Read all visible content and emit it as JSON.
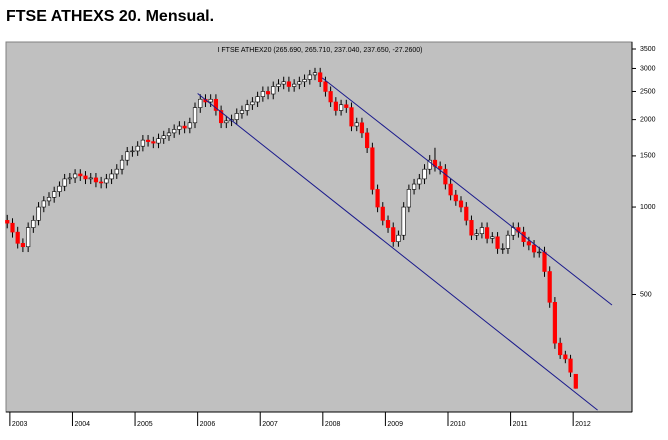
{
  "chart_data": {
    "type": "candlestick",
    "title": "FTSE ATHEXS 20. Mensual.",
    "subtitle": "I FTSE ATHEX20 (265.690, 265.710, 237.040, 237.650, -27.2600)",
    "x": [
      2002.958,
      2003.042,
      2003.125,
      2003.208,
      2003.292,
      2003.375,
      2003.458,
      2003.542,
      2003.625,
      2003.708,
      2003.792,
      2003.875,
      2003.958,
      2004.042,
      2004.125,
      2004.208,
      2004.292,
      2004.375,
      2004.458,
      2004.542,
      2004.625,
      2004.708,
      2004.792,
      2004.875,
      2004.958,
      2005.042,
      2005.125,
      2005.208,
      2005.292,
      2005.375,
      2005.458,
      2005.542,
      2005.625,
      2005.708,
      2005.792,
      2005.875,
      2005.958,
      2006.042,
      2006.125,
      2006.208,
      2006.292,
      2006.375,
      2006.458,
      2006.542,
      2006.625,
      2006.708,
      2006.792,
      2006.875,
      2006.958,
      2007.042,
      2007.125,
      2007.208,
      2007.292,
      2007.375,
      2007.458,
      2007.542,
      2007.625,
      2007.708,
      2007.792,
      2007.875,
      2007.958,
      2008.042,
      2008.125,
      2008.208,
      2008.292,
      2008.375,
      2008.458,
      2008.542,
      2008.625,
      2008.708,
      2008.792,
      2008.875,
      2008.958,
      2009.042,
      2009.125,
      2009.208,
      2009.292,
      2009.375,
      2009.458,
      2009.542,
      2009.625,
      2009.708,
      2009.792,
      2009.875,
      2009.958,
      2010.042,
      2010.125,
      2010.208,
      2010.292,
      2010.375,
      2010.458,
      2010.542,
      2010.625,
      2010.708,
      2010.792,
      2010.875,
      2010.958,
      2011.042,
      2011.125,
      2011.208,
      2011.292,
      2011.375,
      2011.458,
      2011.542,
      2011.625,
      2011.708,
      2011.792,
      2011.875,
      2011.958,
      2012.042
    ],
    "open": [
      900,
      880,
      820,
      750,
      730,
      850,
      900,
      1000,
      1050,
      1080,
      1130,
      1180,
      1250,
      1260,
      1300,
      1280,
      1250,
      1260,
      1220,
      1210,
      1250,
      1300,
      1350,
      1450,
      1550,
      1560,
      1620,
      1700,
      1680,
      1660,
      1720,
      1760,
      1800,
      1850,
      1900,
      1870,
      1950,
      2200,
      2350,
      2300,
      2350,
      2150,
      1950,
      1980,
      2000,
      2100,
      2150,
      2250,
      2300,
      2400,
      2500,
      2450,
      2600,
      2650,
      2700,
      2600,
      2650,
      2700,
      2750,
      2850,
      2900,
      2700,
      2500,
      2300,
      2150,
      2250,
      2200,
      1900,
      1950,
      1800,
      1600,
      1150,
      1000,
      900,
      850,
      760,
      800,
      1000,
      1150,
      1200,
      1250,
      1350,
      1450,
      1380,
      1350,
      1200,
      1100,
      1050,
      1000,
      900,
      800,
      810,
      850,
      780,
      790,
      720,
      720,
      800,
      850,
      820,
      760,
      740,
      700,
      700,
      600,
      470,
      340,
      310,
      300,
      265.69
    ],
    "high": [
      940,
      915,
      855,
      780,
      885,
      935,
      1040,
      1090,
      1125,
      1175,
      1225,
      1300,
      1310,
      1350,
      1350,
      1330,
      1310,
      1310,
      1270,
      1300,
      1350,
      1405,
      1510,
      1610,
      1620,
      1685,
      1770,
      1770,
      1745,
      1790,
      1830,
      1870,
      1925,
      1975,
      1975,
      2030,
      2290,
      2445,
      2445,
      2445,
      2445,
      2235,
      2060,
      2080,
      2185,
      2235,
      2340,
      2390,
      2495,
      2600,
      2600,
      2705,
      2755,
      2810,
      2810,
      2755,
      2810,
      2860,
      2965,
      3015,
      3015,
      2810,
      2600,
      2390,
      2340,
      2340,
      2290,
      2030,
      2030,
      1870,
      1665,
      1195,
      1040,
      935,
      885,
      830,
      1040,
      1195,
      1250,
      1300,
      1405,
      1510,
      1600,
      1435,
      1405,
      1250,
      1145,
      1090,
      1040,
      935,
      840,
      885,
      885,
      820,
      820,
      750,
      830,
      885,
      885,
      855,
      790,
      770,
      730,
      730,
      625,
      490,
      355,
      320,
      310,
      265.71
    ],
    "low": [
      845,
      785,
      720,
      700,
      700,
      815,
      865,
      960,
      1010,
      1035,
      1085,
      1135,
      1200,
      1210,
      1230,
      1200,
      1200,
      1170,
      1160,
      1160,
      1200,
      1250,
      1295,
      1390,
      1490,
      1500,
      1555,
      1615,
      1595,
      1595,
      1650,
      1690,
      1730,
      1775,
      1795,
      1795,
      1870,
      2110,
      2210,
      2210,
      2065,
      1870,
      1870,
      1900,
      1920,
      2015,
      2065,
      2160,
      2210,
      2305,
      2350,
      2350,
      2495,
      2545,
      2495,
      2495,
      2545,
      2590,
      2640,
      2735,
      2590,
      2400,
      2210,
      2065,
      2065,
      2110,
      1825,
      1825,
      1730,
      1535,
      1105,
      960,
      865,
      815,
      730,
      730,
      770,
      960,
      1105,
      1150,
      1200,
      1295,
      1325,
      1295,
      1150,
      1055,
      1010,
      960,
      865,
      770,
      770,
      780,
      750,
      750,
      690,
      690,
      690,
      770,
      785,
      730,
      710,
      670,
      670,
      575,
      450,
      325,
      300,
      290,
      260,
      237.04
    ],
    "close": [
      880,
      820,
      750,
      730,
      850,
      900,
      1000,
      1050,
      1080,
      1130,
      1180,
      1250,
      1260,
      1300,
      1280,
      1250,
      1260,
      1220,
      1210,
      1250,
      1300,
      1350,
      1450,
      1550,
      1560,
      1620,
      1700,
      1680,
      1660,
      1720,
      1760,
      1800,
      1850,
      1900,
      1870,
      1950,
      2200,
      2350,
      2300,
      2350,
      2150,
      1950,
      1980,
      2000,
      2100,
      2150,
      2250,
      2300,
      2400,
      2500,
      2450,
      2600,
      2650,
      2700,
      2600,
      2650,
      2700,
      2750,
      2850,
      2900,
      2700,
      2500,
      2300,
      2150,
      2250,
      2200,
      1900,
      1950,
      1800,
      1600,
      1150,
      1000,
      900,
      850,
      760,
      800,
      1000,
      1150,
      1200,
      1250,
      1350,
      1450,
      1380,
      1350,
      1200,
      1100,
      1050,
      1000,
      900,
      800,
      810,
      850,
      780,
      790,
      720,
      720,
      800,
      850,
      820,
      760,
      740,
      700,
      700,
      600,
      470,
      340,
      310,
      300,
      270,
      237.65
    ],
    "up_color": "#ffffff",
    "down_color": "#ff0000",
    "background": "#c0c0c0",
    "xlim": [
      2002.97,
      2012.94
    ],
    "xticks": [
      2003,
      2004,
      2005,
      2006,
      2007,
      2008,
      2009,
      2010,
      2011,
      2012
    ],
    "ylim": [
      197,
      3700
    ],
    "yticks": [
      500,
      1000,
      1500,
      2000,
      2500,
      3000,
      3500
    ],
    "log_scale": true,
    "y_axis_side": "right",
    "trendlines": [
      {
        "x": [
          2007.99,
          2012.62
        ],
        "y": [
          2785,
          460
        ],
        "color": "#1a1a8c"
      },
      {
        "x": [
          2006.0,
          2012.39
        ],
        "y": [
          2460,
          200
        ],
        "color": "#1a1a8c"
      }
    ]
  }
}
